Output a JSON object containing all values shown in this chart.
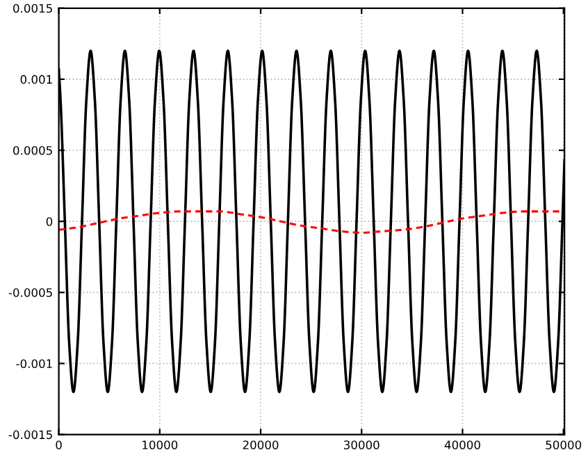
{
  "chart_data": {
    "type": "line",
    "xlim": [
      0,
      50100
    ],
    "ylim": [
      -0.0015,
      0.0015
    ],
    "xticks": [
      0,
      10000,
      20000,
      30000,
      40000,
      50000
    ],
    "yticks": [
      -0.0015,
      -0.001,
      -0.0005,
      0,
      0.0005,
      0.001,
      0.0015
    ],
    "grid": true,
    "series": [
      {
        "color": "#000000",
        "line_style": "solid",
        "x": [
          0,
          175,
          600,
          1025,
          1450,
          1875,
          2300,
          2725,
          3150,
          3575,
          4000,
          4425,
          4850,
          5275,
          5700,
          6125,
          6550,
          6975,
          7400,
          7825,
          8250,
          8675,
          9100,
          9525,
          9950,
          10375,
          10800,
          11225,
          11650,
          12075,
          12500,
          12925,
          13350,
          13775,
          14200,
          14625,
          15050,
          15475,
          15900,
          16325,
          16750,
          17175,
          17600,
          18025,
          18450,
          18875,
          19300,
          19725,
          20150,
          20575,
          21000,
          21425,
          21850,
          22275,
          22700,
          23125,
          23550,
          23975,
          24400,
          24825,
          25250,
          25675,
          26100,
          26525,
          26950,
          27375,
          27800,
          28225,
          28650,
          29075,
          29500,
          29925,
          30350,
          30775,
          31200,
          31625,
          32050,
          32475,
          32900,
          33325,
          33750,
          34175,
          34600,
          35025,
          35450,
          35875,
          36300,
          36725,
          37150,
          37575,
          38000,
          38425,
          38850,
          39275,
          39700,
          40125,
          40550,
          40975,
          41400,
          41825,
          42250,
          42675,
          43100,
          43525,
          43950,
          44375,
          44800,
          45225,
          45650,
          46075,
          46500,
          46925,
          47350,
          47775,
          48200,
          48625,
          49050,
          49475,
          49900,
          50100
        ],
        "values": [
          0.00107,
          0.00085,
          0,
          -0.00085,
          -0.0012,
          -0.00085,
          0,
          0.00085,
          0.0012,
          0.00085,
          0,
          -0.00085,
          -0.0012,
          -0.00085,
          0,
          0.00085,
          0.0012,
          0.00085,
          0,
          -0.00085,
          -0.0012,
          -0.00085,
          0,
          0.00085,
          0.0012,
          0.00085,
          0,
          -0.00085,
          -0.0012,
          -0.00085,
          0,
          0.00085,
          0.0012,
          0.00085,
          0,
          -0.00085,
          -0.0012,
          -0.00085,
          0,
          0.00085,
          0.0012,
          0.00085,
          0,
          -0.00085,
          -0.0012,
          -0.00085,
          0,
          0.00085,
          0.0012,
          0.00085,
          0,
          -0.00085,
          -0.0012,
          -0.00085,
          0,
          0.00085,
          0.0012,
          0.00085,
          0,
          -0.00085,
          -0.0012,
          -0.00085,
          0,
          0.00085,
          0.0012,
          0.00085,
          0,
          -0.00085,
          -0.0012,
          -0.00085,
          0,
          0.00085,
          0.0012,
          0.00085,
          0,
          -0.00085,
          -0.0012,
          -0.00085,
          0,
          0.00085,
          0.0012,
          0.00085,
          0,
          -0.00085,
          -0.0012,
          -0.00085,
          0,
          0.00085,
          0.0012,
          0.00085,
          0,
          -0.00085,
          -0.0012,
          -0.00085,
          0,
          0.00085,
          0.0012,
          0.00085,
          0,
          -0.00085,
          -0.0012,
          -0.00085,
          0,
          0.00085,
          0.0012,
          0.00085,
          0,
          -0.00085,
          -0.0012,
          -0.00085,
          0,
          0.00085,
          0.0012,
          0.00085,
          0,
          -0.00085,
          -0.0012,
          -0.00085,
          0,
          0.00043
        ]
      },
      {
        "color": "#ff0000",
        "line_style": "dashed",
        "x": [
          0,
          2000,
          4000,
          6000,
          8000,
          10000,
          12000,
          14000,
          16000,
          18000,
          20000,
          22000,
          24000,
          26000,
          28000,
          30000,
          32000,
          34000,
          36000,
          38000,
          40000,
          42000,
          44000,
          46000,
          48000,
          50000,
          50100
        ],
        "values": [
          -6e-05,
          -4e-05,
          -1e-05,
          2e-05,
          4e-05,
          6e-05,
          7e-05,
          7e-05,
          7e-05,
          5e-05,
          3e-05,
          0,
          -3e-05,
          -5e-05,
          -7e-05,
          -8e-05,
          -7e-05,
          -6e-05,
          -4e-05,
          -1e-05,
          2e-05,
          4e-05,
          6e-05,
          7e-05,
          7e-05,
          7e-05,
          7e-05
        ]
      }
    ]
  }
}
